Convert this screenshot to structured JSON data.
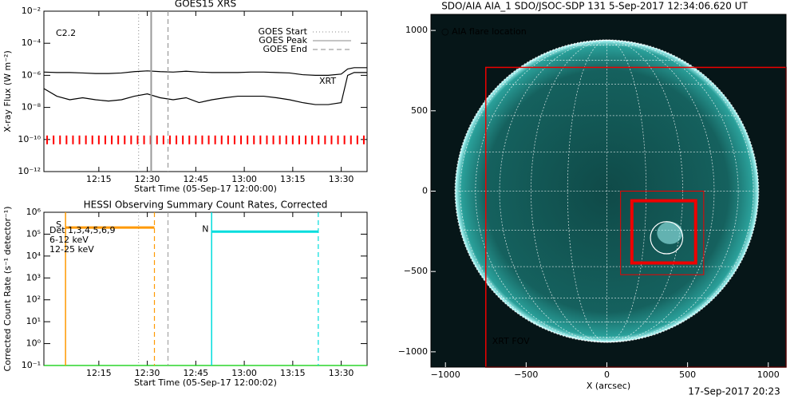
{
  "chart_data": [
    {
      "type": "line",
      "title": "GOES15 XRS",
      "xlabel": "Start Time (05-Sep-17 12:00:00)",
      "ylabel": "X-ray Flux (W m⁻²)",
      "log_y": true,
      "xlim": [
        -2,
        98
      ],
      "ylim": [
        1e-12,
        0.01
      ],
      "xticks": [
        {
          "value": 15,
          "label": "12:15"
        },
        {
          "value": 30,
          "label": "12:30"
        },
        {
          "value": 45,
          "label": "12:45"
        },
        {
          "value": 60,
          "label": "13:00"
        },
        {
          "value": 75,
          "label": "13:15"
        },
        {
          "value": 90,
          "label": "13:30"
        }
      ],
      "yticks": [
        {
          "value": 1e-12,
          "label": "10⁻¹²"
        },
        {
          "value": 1e-10,
          "label": "10⁻¹⁰"
        },
        {
          "value": 1e-08,
          "label": "10⁻⁸"
        },
        {
          "value": 1e-06,
          "label": "10⁻⁶"
        },
        {
          "value": 0.0001,
          "label": "10⁻⁴"
        },
        {
          "value": 0.01,
          "label": "10⁻²"
        }
      ],
      "x": [
        -2,
        2,
        6,
        10,
        14,
        18,
        22,
        26,
        30,
        34,
        38,
        42,
        46,
        50,
        54,
        58,
        62,
        66,
        70,
        74,
        78,
        82,
        86,
        90,
        92,
        94,
        98
      ],
      "series": [
        {
          "color": "#000",
          "values": [
            1.6e-06,
            1.5e-06,
            1.5e-06,
            1.4e-06,
            1.3e-06,
            1.3e-06,
            1.4e-06,
            1.7e-06,
            1.9e-06,
            1.7e-06,
            1.6e-06,
            1.8e-06,
            1.6e-06,
            1.5e-06,
            1.5e-06,
            1.5e-06,
            1.6e-06,
            1.6e-06,
            1.5e-06,
            1.4e-06,
            1.1e-06,
            1e-06,
            1e-06,
            1.2e-06,
            2.5e-06,
            3e-06,
            3e-06
          ]
        },
        {
          "color": "#000",
          "values": [
            1.5e-07,
            5e-08,
            3e-08,
            4e-08,
            3e-08,
            2.5e-08,
            3e-08,
            5e-08,
            7e-08,
            4e-08,
            3e-08,
            4e-08,
            2e-08,
            3e-08,
            4e-08,
            5e-08,
            5e-08,
            5e-08,
            4e-08,
            3e-08,
            2e-08,
            1.5e-08,
            1.5e-08,
            2e-08,
            1e-06,
            1.5e-06,
            1.5e-06
          ]
        }
      ],
      "events": [
        {
          "label": "GOES Start",
          "x": 27.3,
          "style": "dotted",
          "color": "#999"
        },
        {
          "label": "GOES Peak",
          "x": 31.2,
          "style": "solid",
          "color": "#999"
        },
        {
          "label": "GOES End",
          "x": 36.4,
          "style": "dashed",
          "color": "#999"
        }
      ],
      "flare_class": "C2.2",
      "xrt_label": "XRT",
      "xrt_color": "#f00",
      "xrt_level": 1e-10,
      "xrt_times": [
        -1,
        1,
        3,
        5,
        7,
        9,
        11,
        13,
        15,
        17,
        19,
        21,
        23,
        25,
        27,
        29,
        31,
        33,
        35,
        37,
        39,
        41,
        43,
        45,
        47,
        49,
        51,
        53,
        55,
        57,
        59,
        61,
        63,
        65,
        67,
        69,
        71,
        73,
        75,
        77,
        79,
        81,
        83,
        85,
        87,
        89,
        91,
        93,
        95,
        97
      ]
    },
    {
      "type": "timeline",
      "title": "HESSI Observing Summary Count Rates, Corrected",
      "xlabel": "Start Time (05-Sep-17 12:00:02)",
      "ylabel": "Corrected Count Rate (s⁻¹ detector⁻¹)",
      "log_y": true,
      "xlim": [
        -2,
        98
      ],
      "ylim": [
        0.1,
        1000000
      ],
      "xticks": [
        {
          "value": 15,
          "label": "12:15"
        },
        {
          "value": 30,
          "label": "12:30"
        },
        {
          "value": 45,
          "label": "12:45"
        },
        {
          "value": 60,
          "label": "13:00"
        },
        {
          "value": 75,
          "label": "13:15"
        },
        {
          "value": 90,
          "label": "13:30"
        }
      ],
      "yticks": [
        {
          "value": 0.1,
          "label": "10⁻¹"
        },
        {
          "value": 1,
          "label": "10⁰"
        },
        {
          "value": 10,
          "label": "10¹"
        },
        {
          "value": 100,
          "label": "10²"
        },
        {
          "value": 1000,
          "label": "10³"
        },
        {
          "value": 10000,
          "label": "10⁴"
        },
        {
          "value": 100000,
          "label": "10⁵"
        },
        {
          "value": 1000000,
          "label": "10⁶"
        }
      ],
      "observations": [
        {
          "name": "S",
          "color": "#f90",
          "start": 4.7,
          "end": 32.2,
          "value": 200000
        },
        {
          "name": "N",
          "color": "#0dd",
          "start": 49.9,
          "end": 82.9,
          "value": 130000
        }
      ],
      "series": [
        {
          "color": "#0c0",
          "x": [
            -2,
            98
          ],
          "values": [
            0.1,
            0.1
          ]
        }
      ],
      "legend": [
        {
          "name": "Det 1,3,4,5,6,9",
          "color": "#000"
        },
        {
          "name": "6-12 keV",
          "color": "#c0c"
        },
        {
          "name": "12-25 keV",
          "color": "#0c0"
        }
      ]
    },
    {
      "type": "image",
      "title": "SDO/AIA AIA_1 SDO/JSOC-SDP 131  5-Sep-2017 12:34:06.620 UT",
      "xlabel": "X (arcsec)",
      "xlim": [
        -1090,
        1110
      ],
      "ylim": [
        -1095,
        1100
      ],
      "xticks": [
        {
          "value": -1000,
          "label": "−1000"
        },
        {
          "value": -500,
          "label": "−500"
        },
        0,
        500,
        1000
      ],
      "yticks": [
        {
          "value": -1000,
          "label": "−1000"
        },
        {
          "value": -500,
          "label": "−500"
        },
        0,
        500,
        1000
      ],
      "sun_radius": 940,
      "xrt_fov": {
        "label": "XRT FOV",
        "x": [
          -750,
          1110
        ],
        "y": [
          -1095,
          770
        ]
      },
      "boxes": [
        {
          "x": [
            155,
            550
          ],
          "y": [
            -447,
            -60
          ],
          "width": 4
        },
        {
          "x": [
            85,
            600
          ],
          "y": [
            -520,
            0
          ],
          "width": 1
        }
      ],
      "flare": {
        "label": "○ AIA flare location",
        "x": 370,
        "y": -290,
        "r": 100
      }
    }
  ],
  "footer": "17-Sep-2017 20:23"
}
